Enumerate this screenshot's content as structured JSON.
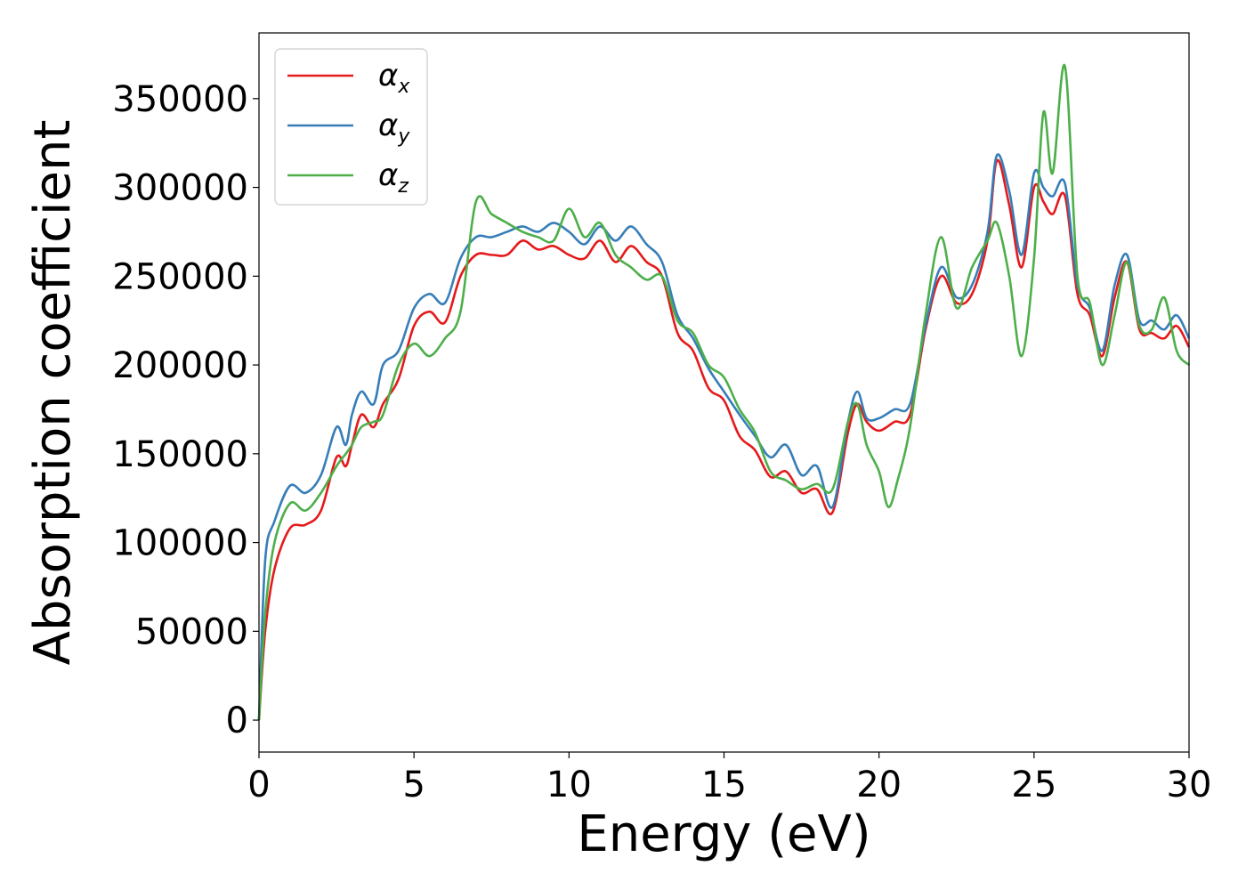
{
  "chart_data": {
    "type": "line",
    "title": "",
    "xlabel": "Energy (eV)",
    "ylabel": "Absorption coefficient",
    "xlim": [
      0,
      30
    ],
    "ylim": [
      -18000,
      387000
    ],
    "xticks": [
      0,
      5,
      10,
      15,
      20,
      25,
      30
    ],
    "xtick_labels": [
      "0",
      "5",
      "10",
      "15",
      "20",
      "25",
      "30"
    ],
    "yticks": [
      0,
      50000,
      100000,
      150000,
      200000,
      250000,
      300000,
      350000
    ],
    "ytick_labels": [
      "0",
      "50000",
      "100000",
      "150000",
      "200000",
      "250000",
      "300000",
      "350000"
    ],
    "grid": false,
    "legend_position": "top-left",
    "series": [
      {
        "name": "α",
        "subscript": "x",
        "color": "#e41a1c",
        "x": [
          0,
          0.2,
          0.5,
          1.0,
          1.5,
          2.0,
          2.5,
          2.8,
          3.0,
          3.3,
          3.7,
          4.0,
          4.5,
          5.0,
          5.5,
          6.0,
          6.5,
          7.0,
          7.5,
          8.0,
          8.5,
          9.0,
          9.5,
          10.0,
          10.5,
          11.0,
          11.5,
          12.0,
          12.5,
          13.0,
          13.5,
          14.0,
          14.5,
          15.0,
          15.5,
          16.0,
          16.5,
          17.0,
          17.5,
          18.0,
          18.5,
          19.0,
          19.3,
          19.6,
          20.0,
          20.5,
          21.0,
          21.5,
          22.0,
          22.5,
          23.0,
          23.5,
          23.8,
          24.2,
          24.6,
          25.0,
          25.3,
          25.6,
          26.0,
          26.4,
          26.8,
          27.2,
          27.6,
          28.0,
          28.4,
          28.8,
          29.2,
          29.6,
          30.0
        ],
        "values": [
          0,
          50000,
          85000,
          108000,
          110000,
          118000,
          148000,
          143000,
          155000,
          172000,
          165000,
          178000,
          192000,
          222000,
          230000,
          224000,
          250000,
          262000,
          262000,
          262000,
          270000,
          265000,
          267000,
          262000,
          260000,
          270000,
          258000,
          267000,
          258000,
          250000,
          218000,
          208000,
          187000,
          180000,
          160000,
          152000,
          137000,
          140000,
          128000,
          130000,
          117000,
          162000,
          178000,
          168000,
          163000,
          168000,
          172000,
          220000,
          250000,
          235000,
          240000,
          270000,
          315000,
          290000,
          255000,
          300000,
          292000,
          285000,
          295000,
          240000,
          228000,
          205000,
          238000,
          258000,
          220000,
          218000,
          215000,
          222000,
          210000
        ]
      },
      {
        "name": "α",
        "subscript": "y",
        "color": "#377eb8",
        "x": [
          0,
          0.2,
          0.5,
          1.0,
          1.5,
          2.0,
          2.5,
          2.8,
          3.0,
          3.3,
          3.7,
          4.0,
          4.5,
          5.0,
          5.5,
          6.0,
          6.5,
          7.0,
          7.5,
          8.0,
          8.5,
          9.0,
          9.5,
          10.0,
          10.5,
          11.0,
          11.5,
          12.0,
          12.5,
          13.0,
          13.5,
          14.0,
          14.5,
          15.0,
          15.5,
          16.0,
          16.5,
          17.0,
          17.5,
          18.0,
          18.5,
          19.0,
          19.3,
          19.6,
          20.0,
          20.5,
          21.0,
          21.5,
          22.0,
          22.5,
          23.0,
          23.5,
          23.8,
          24.2,
          24.6,
          25.0,
          25.3,
          25.6,
          26.0,
          26.4,
          26.8,
          27.2,
          27.6,
          28.0,
          28.4,
          28.8,
          29.2,
          29.6,
          30.0
        ],
        "values": [
          0,
          90000,
          112000,
          132000,
          128000,
          138000,
          165000,
          155000,
          172000,
          185000,
          178000,
          200000,
          208000,
          232000,
          240000,
          235000,
          260000,
          272000,
          272000,
          275000,
          278000,
          275000,
          280000,
          275000,
          268000,
          278000,
          270000,
          278000,
          268000,
          258000,
          228000,
          215000,
          198000,
          185000,
          172000,
          160000,
          148000,
          155000,
          138000,
          143000,
          120000,
          168000,
          185000,
          170000,
          170000,
          175000,
          178000,
          222000,
          255000,
          238000,
          245000,
          275000,
          318000,
          298000,
          262000,
          308000,
          300000,
          295000,
          302000,
          245000,
          232000,
          208000,
          245000,
          262000,
          225000,
          225000,
          220000,
          228000,
          215000
        ]
      },
      {
        "name": "α",
        "subscript": "z",
        "color": "#4daf4a",
        "x": [
          0,
          0.2,
          0.5,
          1.0,
          1.5,
          2.0,
          2.5,
          2.8,
          3.0,
          3.3,
          3.7,
          4.0,
          4.5,
          5.0,
          5.5,
          6.0,
          6.5,
          7.0,
          7.5,
          8.0,
          8.5,
          9.0,
          9.5,
          10.0,
          10.5,
          11.0,
          11.5,
          12.0,
          12.5,
          13.0,
          13.5,
          14.0,
          14.5,
          15.0,
          15.5,
          16.0,
          16.5,
          17.0,
          17.5,
          18.0,
          18.5,
          19.0,
          19.3,
          19.6,
          20.0,
          20.3,
          20.6,
          21.0,
          21.5,
          22.0,
          22.5,
          23.0,
          23.5,
          23.8,
          24.2,
          24.6,
          25.0,
          25.3,
          25.6,
          26.0,
          26.4,
          26.8,
          27.2,
          27.6,
          28.0,
          28.4,
          28.8,
          29.2,
          29.6,
          30.0
        ],
        "values": [
          0,
          60000,
          100000,
          122000,
          118000,
          128000,
          143000,
          150000,
          155000,
          165000,
          168000,
          172000,
          200000,
          212000,
          205000,
          215000,
          230000,
          292000,
          285000,
          280000,
          275000,
          272000,
          270000,
          288000,
          272000,
          280000,
          262000,
          255000,
          248000,
          250000,
          225000,
          218000,
          200000,
          193000,
          175000,
          162000,
          140000,
          135000,
          130000,
          133000,
          130000,
          168000,
          178000,
          155000,
          140000,
          120000,
          135000,
          165000,
          228000,
          272000,
          232000,
          255000,
          270000,
          280000,
          250000,
          205000,
          260000,
          342000,
          308000,
          368000,
          250000,
          235000,
          200000,
          228000,
          258000,
          222000,
          220000,
          238000,
          208000,
          200000
        ]
      }
    ]
  }
}
